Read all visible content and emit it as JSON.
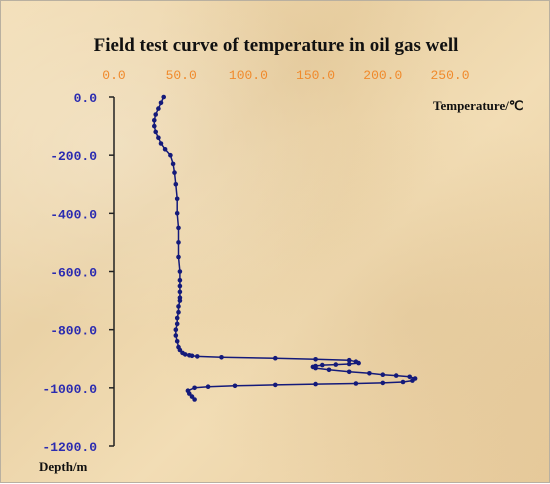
{
  "chart_data": {
    "type": "line",
    "title": "Field test curve of temperature in oil gas well",
    "xlabel": "Temperature/℃",
    "ylabel": "Depth/m",
    "x_axis_position": "top",
    "xlim": [
      0,
      250
    ],
    "ylim": [
      -1200,
      0
    ],
    "x_ticks": [
      "0.0",
      "50.0",
      "100.0",
      "150.0",
      "200.0",
      "250.0"
    ],
    "y_ticks": [
      "0.0",
      "-200.0",
      "-400.0",
      "-600.0",
      "-800.0",
      "-1000.0",
      "-1200.0"
    ],
    "grid": false,
    "colors": {
      "series": "#141a7a",
      "x_ticks": "#f08a2c",
      "y_ticks": "#2b2bb0"
    },
    "series": [
      {
        "x": [
          37,
          35,
          33,
          31,
          30,
          30,
          31,
          33,
          35,
          38,
          42,
          44,
          45,
          46,
          47,
          47,
          48,
          48,
          48,
          49,
          49,
          49,
          49,
          49,
          49,
          48,
          48,
          47,
          47,
          46,
          46,
          47,
          48,
          49,
          51,
          53,
          56,
          58,
          62,
          80,
          120,
          150,
          175,
          180,
          182,
          175,
          165,
          155,
          150,
          148,
          150,
          160,
          175,
          190,
          200,
          210,
          220,
          224,
          222,
          215,
          200,
          180,
          150,
          120,
          90,
          70,
          60,
          55,
          56,
          58,
          60
        ],
        "y": [
          0,
          -20,
          -40,
          -60,
          -80,
          -100,
          -120,
          -140,
          -160,
          -180,
          -200,
          -230,
          -260,
          -300,
          -350,
          -400,
          -450,
          -500,
          -550,
          -600,
          -630,
          -650,
          -670,
          -690,
          -700,
          -720,
          -740,
          -760,
          -780,
          -800,
          -820,
          -840,
          -860,
          -870,
          -880,
          -885,
          -888,
          -890,
          -892,
          -895,
          -898,
          -902,
          -905,
          -910,
          -915,
          -918,
          -920,
          -922,
          -925,
          -928,
          -932,
          -938,
          -945,
          -950,
          -955,
          -958,
          -962,
          -968,
          -975,
          -980,
          -983,
          -985,
          -987,
          -990,
          -993,
          -996,
          -1000,
          -1010,
          -1020,
          -1030,
          -1040
        ]
      }
    ]
  }
}
